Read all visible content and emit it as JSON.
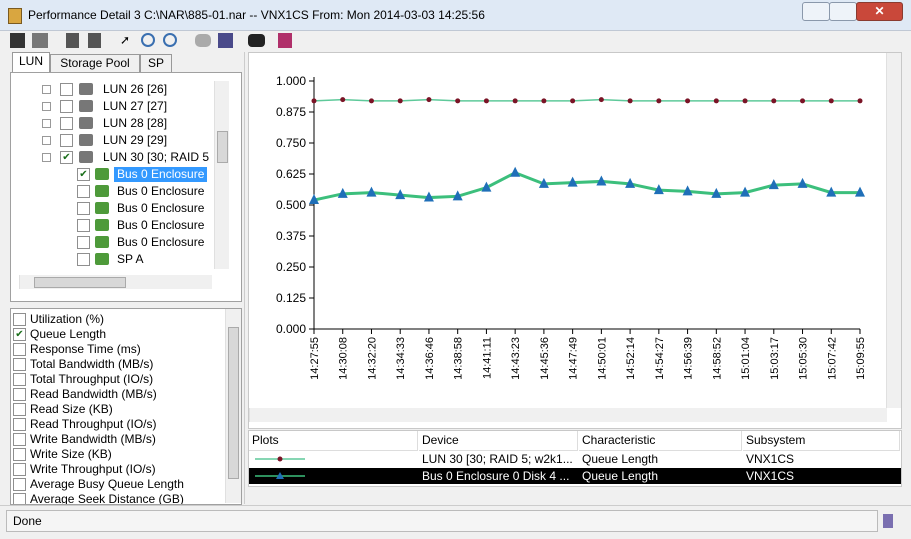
{
  "window": {
    "title": "Performance Detail 3 C:\\NAR\\885-01.nar -- VNX1CS From: Mon 2014-03-03 14:25:56"
  },
  "tabs": [
    "LUN",
    "Storage Pool",
    "SP"
  ],
  "tree": [
    {
      "label": "LUN 26 [26]",
      "level": 0,
      "checked": false
    },
    {
      "label": "LUN 27 [27]",
      "level": 0,
      "checked": false
    },
    {
      "label": "LUN 28 [28]",
      "level": 0,
      "checked": false
    },
    {
      "label": "LUN 29 [29]",
      "level": 0,
      "checked": false
    },
    {
      "label": "LUN 30 [30; RAID 5",
      "level": 0,
      "checked": true
    },
    {
      "label": "Bus 0 Enclosure",
      "level": 1,
      "checked": true,
      "selected": true
    },
    {
      "label": "Bus 0 Enclosure",
      "level": 1,
      "checked": false
    },
    {
      "label": "Bus 0 Enclosure",
      "level": 1,
      "checked": false
    },
    {
      "label": "Bus 0 Enclosure",
      "level": 1,
      "checked": false
    },
    {
      "label": "Bus 0 Enclosure",
      "level": 1,
      "checked": false
    },
    {
      "label": "SP A",
      "level": 1,
      "checked": false
    }
  ],
  "metrics": [
    {
      "label": "Utilization (%)",
      "checked": false
    },
    {
      "label": "Queue Length",
      "checked": true
    },
    {
      "label": "Response Time (ms)",
      "checked": false
    },
    {
      "label": "Total Bandwidth (MB/s)",
      "checked": false
    },
    {
      "label": "Total Throughput (IO/s)",
      "checked": false
    },
    {
      "label": "Read Bandwidth (MB/s)",
      "checked": false
    },
    {
      "label": "Read Size (KB)",
      "checked": false
    },
    {
      "label": "Read Throughput (IO/s)",
      "checked": false
    },
    {
      "label": "Write Bandwidth (MB/s)",
      "checked": false
    },
    {
      "label": "Write Size (KB)",
      "checked": false
    },
    {
      "label": "Write Throughput (IO/s)",
      "checked": false
    },
    {
      "label": "Average Busy Queue Length",
      "checked": false
    },
    {
      "label": "Average Seek Distance (GB)",
      "checked": false
    }
  ],
  "chart_data": {
    "type": "line",
    "categories": [
      "14:27:55",
      "14:30:08",
      "14:32:20",
      "14:34:33",
      "14:36:46",
      "14:38:58",
      "14:41:11",
      "14:43:23",
      "14:45:36",
      "14:47:49",
      "14:50:01",
      "14:52:14",
      "14:54:27",
      "14:56:39",
      "14:58:52",
      "15:01:04",
      "15:03:17",
      "15:05:30",
      "15:07:42",
      "15:09:55"
    ],
    "series": [
      {
        "name": "LUN 30 [30; RAID 5; w2k1...",
        "color": "#5ec99a",
        "marker_color": "#7a1426",
        "marker": "dot",
        "values": [
          0.92,
          0.925,
          0.92,
          0.92,
          0.925,
          0.92,
          0.92,
          0.92,
          0.92,
          0.92,
          0.925,
          0.92,
          0.92,
          0.92,
          0.92,
          0.92,
          0.92,
          0.92,
          0.92,
          0.92
        ]
      },
      {
        "name": "Bus 0 Enclosure 0 Disk 4 ...",
        "color": "#3cbf7c",
        "marker_color": "#1f6fb8",
        "marker": "triangle",
        "values": [
          0.52,
          0.545,
          0.55,
          0.54,
          0.53,
          0.535,
          0.57,
          0.63,
          0.585,
          0.59,
          0.595,
          0.585,
          0.56,
          0.555,
          0.545,
          0.55,
          0.58,
          0.585,
          0.55,
          0.55
        ]
      }
    ],
    "ylim": [
      0,
      1
    ],
    "yticks": [
      {
        "value": 0,
        "label": "0.000"
      },
      {
        "value": 0.125,
        "label": "0.125"
      },
      {
        "value": 0.25,
        "label": "0.250"
      },
      {
        "value": 0.375,
        "label": "0.375"
      },
      {
        "value": 0.5,
        "label": "0.500"
      },
      {
        "value": 0.625,
        "label": "0.625"
      },
      {
        "value": 0.75,
        "label": "0.750"
      },
      {
        "value": 0.875,
        "label": "0.875"
      },
      {
        "value": 1,
        "label": "1.000"
      }
    ]
  },
  "plots_table": {
    "headers": [
      "Plots",
      "Device",
      "Characteristic",
      "Subsystem"
    ],
    "rows": [
      {
        "characteristic": "Queue Length",
        "subsystem": "VNX1CS"
      },
      {
        "characteristic": "Queue Length",
        "subsystem": "VNX1CS"
      }
    ]
  },
  "status": "Done"
}
